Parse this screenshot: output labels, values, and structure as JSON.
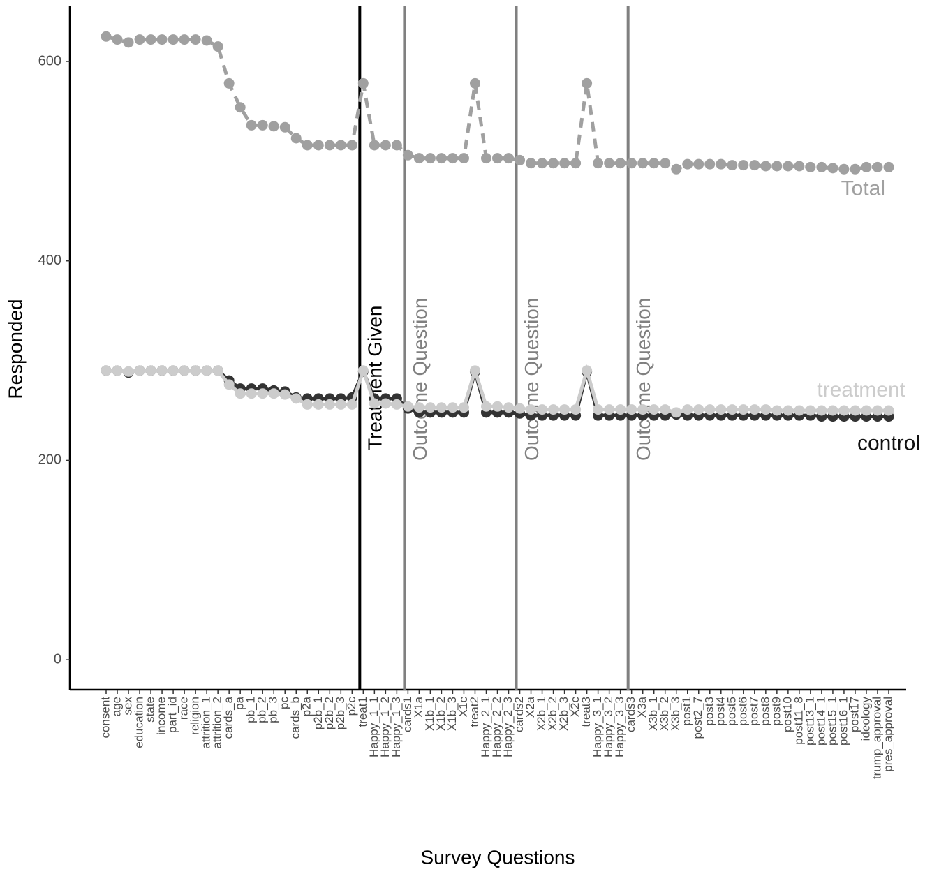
{
  "chart_data": {
    "type": "line",
    "x_label": "Survey Questions",
    "y_label": "Responded",
    "categories": [
      "consent",
      "age",
      "sex",
      "education",
      "state",
      "income",
      "part_id",
      "race",
      "religion",
      "attrition_1",
      "attrition_2",
      "cards_a",
      "pa",
      "pb_1",
      "pb_2",
      "pb_3",
      "pc",
      "cards_b",
      "p2a",
      "p2b_1",
      "p2b_2",
      "p2b_3",
      "p2c",
      "treat1",
      "Happy_1_1",
      "Happy_1_2",
      "Happy_1_3",
      "cards1",
      "X1a",
      "X1b_1",
      "X1b_2",
      "X1b_3",
      "X1c",
      "treat2",
      "Happy_2_1",
      "Happy_2_2",
      "Happy_2_3",
      "cards2",
      "X2a",
      "X2b_1",
      "X2b_2",
      "X2b_3",
      "X2c",
      "treat3",
      "Happy_3_1",
      "Happy_3_2",
      "Happy_3_3",
      "cards3",
      "X3a",
      "X3b_1",
      "X3b_2",
      "X3b_3",
      "post1",
      "post2_7",
      "post3",
      "post4",
      "post5",
      "post6",
      "post7",
      "post8",
      "post9",
      "post10",
      "post11_8",
      "post13_1",
      "post14_1",
      "post15_1",
      "post16_1",
      "post17",
      "ideology",
      "trump_approval",
      "pres_approval"
    ],
    "series": [
      {
        "name": "Total",
        "color": "#a0a0a0",
        "linestyle": "dashed",
        "values": [
          625,
          622,
          619,
          622,
          622,
          622,
          622,
          622,
          622,
          621,
          615,
          578,
          554,
          536,
          536,
          535,
          534,
          523,
          516,
          516,
          516,
          516,
          516,
          578,
          516,
          516,
          516,
          506,
          503,
          503,
          503,
          503,
          503,
          578,
          503,
          503,
          503,
          501,
          498,
          498,
          498,
          498,
          498,
          578,
          498,
          498,
          498,
          498,
          498,
          498,
          498,
          492,
          497,
          497,
          497,
          497,
          496,
          496,
          496,
          495,
          495,
          495,
          495,
          494,
          494,
          493,
          492,
          492,
          494,
          494,
          494
        ]
      },
      {
        "name": "control",
        "color": "#333333",
        "linestyle": "solid",
        "values": [
          290,
          290,
          288,
          290,
          290,
          290,
          290,
          290,
          290,
          290,
          290,
          280,
          272,
          272,
          272,
          270,
          269,
          263,
          262,
          262,
          262,
          262,
          263,
          289,
          262,
          262,
          262,
          252,
          248,
          248,
          248,
          248,
          248,
          289,
          248,
          248,
          248,
          247,
          245,
          245,
          245,
          245,
          245,
          289,
          245,
          245,
          245,
          245,
          245,
          245,
          245,
          246,
          245,
          245,
          245,
          245,
          245,
          245,
          245,
          245,
          245,
          245,
          245,
          245,
          244,
          244,
          244,
          244,
          244,
          244,
          244
        ]
      },
      {
        "name": "treatment",
        "color": "#cccccc",
        "linestyle": "solid",
        "values": [
          290,
          290,
          289,
          290,
          290,
          290,
          290,
          290,
          290,
          290,
          290,
          276,
          267,
          267,
          267,
          267,
          266,
          262,
          256,
          256,
          256,
          256,
          256,
          290,
          257,
          257,
          256,
          254,
          253,
          253,
          253,
          253,
          253,
          290,
          254,
          254,
          253,
          252,
          251,
          251,
          251,
          251,
          251,
          290,
          251,
          251,
          251,
          251,
          251,
          251,
          251,
          248,
          251,
          251,
          251,
          251,
          251,
          251,
          251,
          251,
          250,
          250,
          250,
          250,
          250,
          250,
          250,
          250,
          250,
          250,
          250
        ]
      }
    ],
    "vlines": [
      {
        "x": "treat1",
        "label": "Treatment Given",
        "color": "#000000"
      },
      {
        "x": "cards1",
        "label": "Outcome Question",
        "color": "#808080"
      },
      {
        "x": "cards2",
        "label": "Outcome Question",
        "color": "#808080"
      },
      {
        "x": "cards3",
        "label": "Outcome Question",
        "color": "#808080"
      }
    ],
    "ylim": [
      -30,
      656
    ],
    "yticks": [
      0,
      200,
      400,
      600
    ],
    "grid": false
  }
}
